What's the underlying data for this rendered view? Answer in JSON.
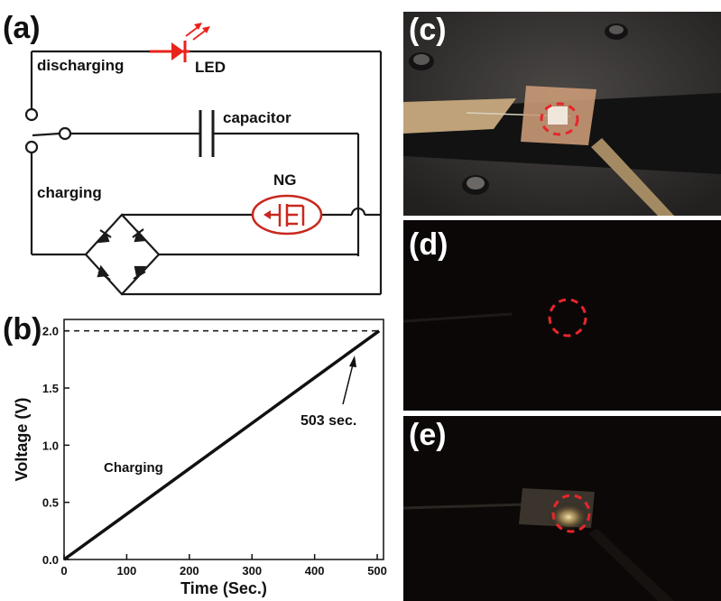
{
  "panels": {
    "a": {
      "label": "(a)",
      "texts": {
        "discharging": "discharging",
        "led": "LED",
        "capacitor": "capacitor",
        "charging": "charging",
        "ng": "NG"
      },
      "colors": {
        "circuit": "#1a1a1a",
        "led": "#e8231c",
        "ng": "#c8281e"
      }
    },
    "b": {
      "label": "(b)",
      "annotation": "503 sec.",
      "curve_label": "Charging"
    },
    "c": {
      "label": "(c)"
    },
    "d": {
      "label": "(d)"
    },
    "e": {
      "label": "(e)"
    }
  },
  "chart_data": {
    "type": "line",
    "xlabel": "Time (Sec.)",
    "ylabel": "Voltage (V)",
    "xlim": [
      0,
      510
    ],
    "ylim": [
      0.0,
      2.1
    ],
    "xticks": [
      "0",
      "100",
      "200",
      "300",
      "400",
      "500"
    ],
    "yticks": [
      "0.0",
      "0.5",
      "1.0",
      "1.5",
      "2.0"
    ],
    "series": [
      {
        "x": [
          0,
          100,
          200,
          300,
          400,
          503
        ],
        "y": [
          0.0,
          0.397,
          0.795,
          1.192,
          1.59,
          2.0
        ]
      }
    ],
    "reference_line": {
      "y": 2.0,
      "style": "dashed"
    },
    "grid": false
  }
}
